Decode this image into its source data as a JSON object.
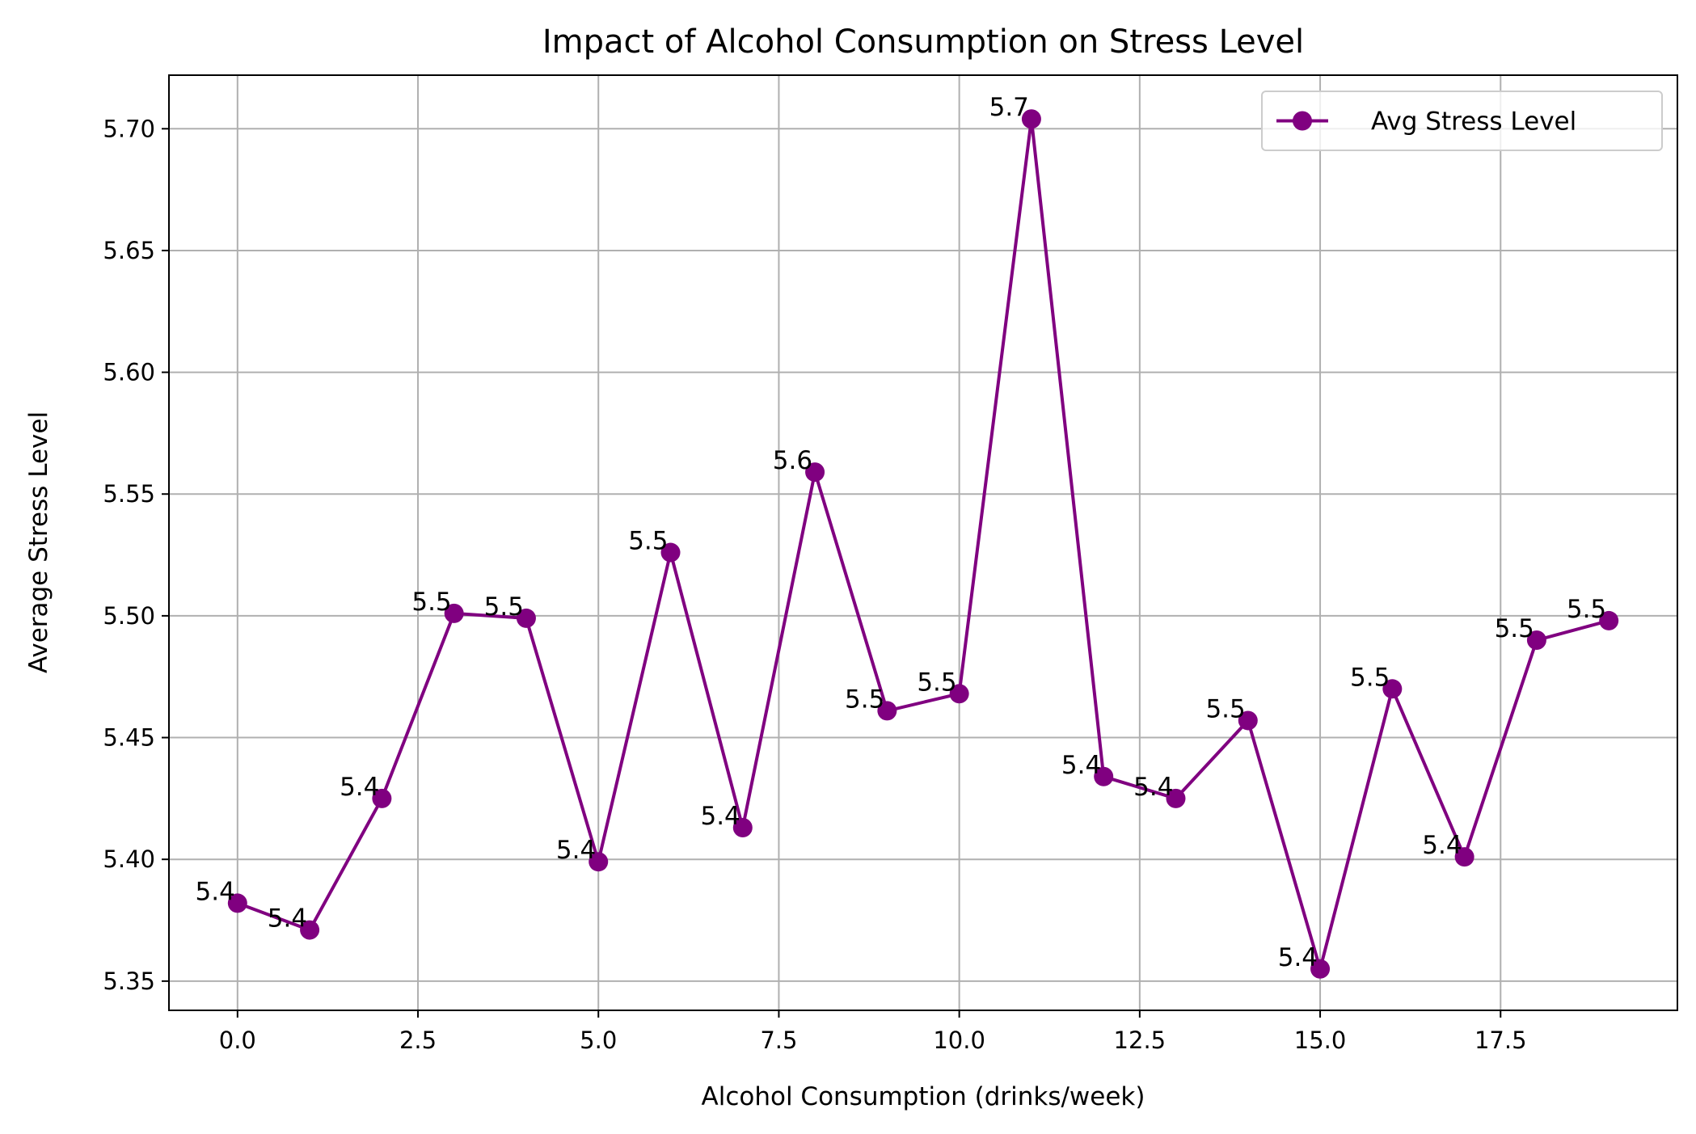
{
  "chart_data": {
    "type": "line",
    "title": "Impact of Alcohol Consumption on Stress Level",
    "xlabel": "Alcohol Consumption (drinks/week)",
    "ylabel": "Average Stress Level",
    "xlim": [
      -0.95,
      19.95
    ],
    "ylim": [
      5.338,
      5.722
    ],
    "xticks": [
      0.0,
      2.5,
      5.0,
      7.5,
      10.0,
      12.5,
      15.0,
      17.5
    ],
    "xtick_labels": [
      "0.0",
      "2.5",
      "5.0",
      "7.5",
      "10.0",
      "12.5",
      "15.0",
      "17.5"
    ],
    "yticks": [
      5.35,
      5.4,
      5.45,
      5.5,
      5.55,
      5.6,
      5.65,
      5.7
    ],
    "ytick_labels": [
      "5.35",
      "5.40",
      "5.45",
      "5.50",
      "5.55",
      "5.60",
      "5.65",
      "5.70"
    ],
    "grid": true,
    "legend_position": "top-right",
    "series": [
      {
        "name": "Avg Stress Level",
        "color": "#800080",
        "marker": "circle",
        "x": [
          0,
          1,
          2,
          3,
          4,
          5,
          6,
          7,
          8,
          9,
          10,
          11,
          12,
          13,
          14,
          15,
          16,
          17,
          18,
          19
        ],
        "values": [
          5.382,
          5.371,
          5.425,
          5.501,
          5.499,
          5.399,
          5.526,
          5.413,
          5.559,
          5.461,
          5.468,
          5.704,
          5.434,
          5.425,
          5.457,
          5.355,
          5.47,
          5.401,
          5.49,
          5.498
        ],
        "data_labels": [
          "5.4",
          "5.4",
          "5.4",
          "5.5",
          "5.5",
          "5.4",
          "5.5",
          "5.4",
          "5.6",
          "5.5",
          "5.5",
          "5.7",
          "5.4",
          "5.4",
          "5.5",
          "5.4",
          "5.5",
          "5.4",
          "5.5",
          "5.5"
        ]
      }
    ]
  }
}
